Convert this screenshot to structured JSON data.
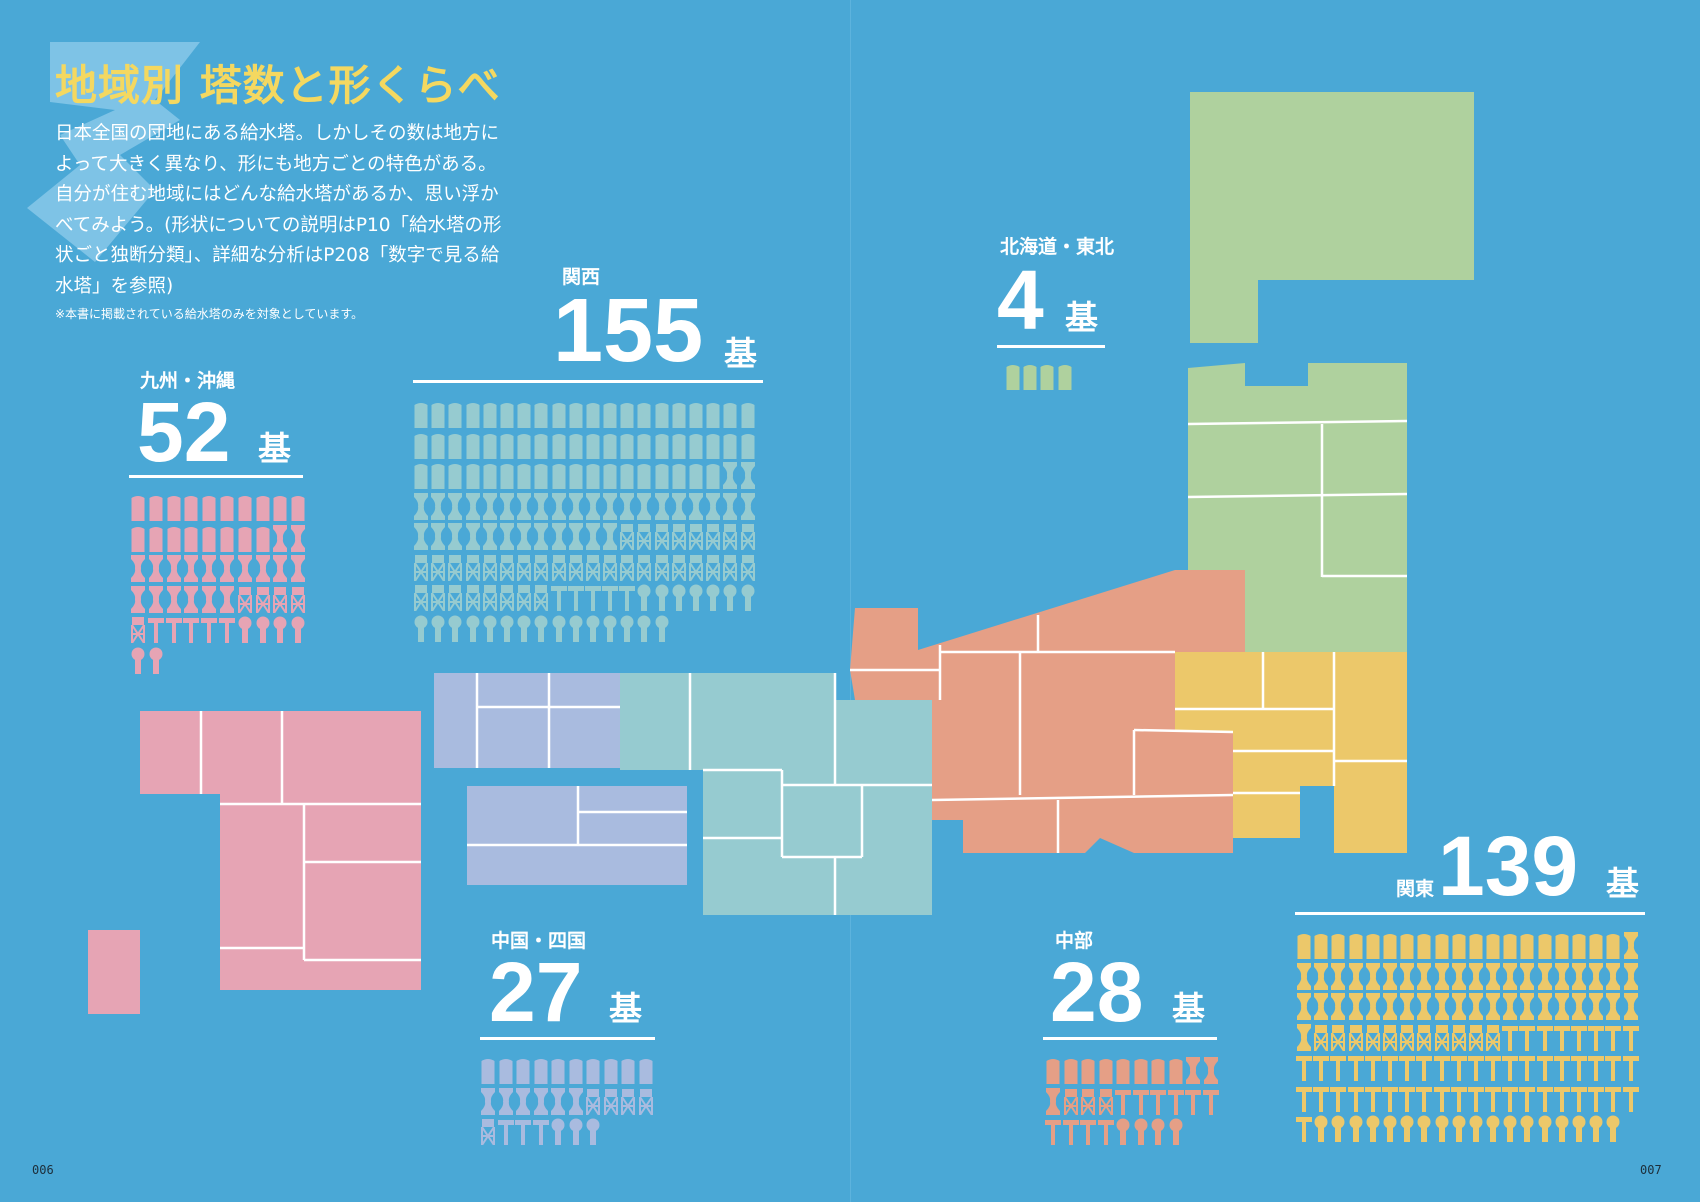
{
  "title": "地域別 塔数と形くらべ",
  "intro": "日本全国の団地にある給水塔。しかしその数は地方によって大きく異なり、形にも地方ごとの特色がある。自分が住む地域にはどんな給水塔があるか、思い浮かべてみよう。(形状についての説明はP10「給水塔の形状ごと独断分類」、詳細な分析はP208「数字で見る給水塔」を参照)",
  "note": "※本書に掲載されている給水塔のみを対象としています。",
  "unit": "基",
  "colors": {
    "background": "#4aa8d6",
    "kyushu": "#e6a4b4",
    "kansai": "#96cbd0",
    "hokkaido_tohoku": "#afd19e",
    "chugoku_shikoku": "#a9bbdf",
    "chubu": "#e59f86",
    "kanto": "#ecc86a",
    "title": "#f4d860"
  },
  "regions": {
    "kyushu": {
      "name": "九州・沖縄",
      "count": "52",
      "shapes": {
        "cylinder": 18,
        "flared": 18,
        "lattice": 5,
        "t": 5,
        "other": 6
      }
    },
    "kansai": {
      "name": "関西",
      "count": "155",
      "shapes": {
        "cylinder": 58,
        "flared": 34,
        "lattice": 36,
        "t": 5,
        "other": 22
      }
    },
    "hokkaido_tohoku": {
      "name": "北海道・東北",
      "count": "4",
      "shapes": {
        "cylinder": 4
      }
    },
    "chugoku_shikoku": {
      "name": "中国・四国",
      "count": "27",
      "shapes": {
        "cylinder": 10,
        "flared": 6,
        "lattice": 5,
        "t": 3,
        "other": 3
      }
    },
    "chubu": {
      "name": "中部",
      "count": "28",
      "shapes": {
        "cylinder": 8,
        "flared": 3,
        "lattice": 3,
        "t": 10,
        "other": 4
      }
    },
    "kanto": {
      "name": "関東",
      "count": "139",
      "shapes": {
        "cylinder": 19,
        "flared": 42,
        "lattice": 11,
        "t": 49,
        "other": 18
      }
    }
  },
  "page_left": "006",
  "page_right": "007"
}
